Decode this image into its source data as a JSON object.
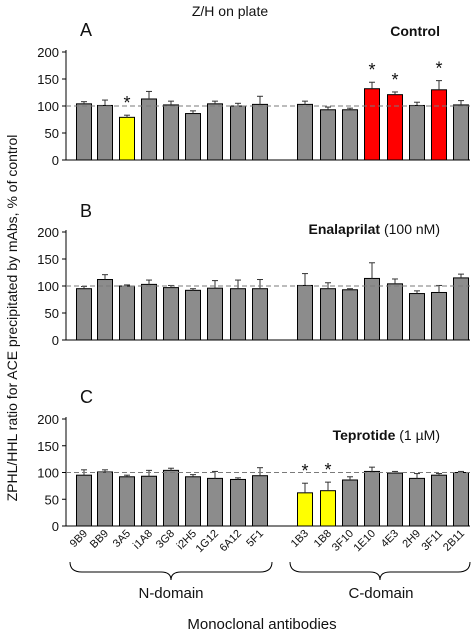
{
  "header": {
    "title": "Z/H on plate"
  },
  "y_axis_label": "ZPHL/HHL ratio for ACE precipitated by mAbs, % of control",
  "x_axis_label": "Monoclonal antibodies",
  "domain_labels": {
    "n": "N-domain",
    "c": "C-domain"
  },
  "colors": {
    "gray": "#8c8c8c",
    "yellow": "#ffff00",
    "red": "#ff0000",
    "refline": "#7a7a7a"
  },
  "chart_data": [
    {
      "type": "bar",
      "panel": "A",
      "title_bold": "Control",
      "title_rest": "",
      "ylim": [
        0,
        200
      ],
      "yticks": [
        0,
        50,
        100,
        150,
        200
      ],
      "reference_line": 100,
      "categories": [
        "9B9",
        "BB9",
        "3A5",
        "i1A8",
        "3G8",
        "i2H5",
        "1G12",
        "6A12",
        "5F1",
        "1B3",
        "1B8",
        "3F10",
        "1E10",
        "4E3",
        "2H9",
        "3F11",
        "2B11"
      ],
      "values": [
        104,
        101,
        79,
        113,
        102,
        86,
        104,
        100,
        103,
        103,
        93,
        93,
        132,
        121,
        101,
        130,
        102
      ],
      "errors": [
        4,
        10,
        4,
        14,
        7,
        5,
        5,
        5,
        15,
        6,
        5,
        3,
        12,
        5,
        6,
        17,
        8
      ],
      "bar_colors": [
        "gray",
        "gray",
        "yellow",
        "gray",
        "gray",
        "gray",
        "gray",
        "gray",
        "gray",
        "gray",
        "gray",
        "gray",
        "red",
        "red",
        "gray",
        "red",
        "gray"
      ],
      "significant": [
        2,
        12,
        13,
        15
      ]
    },
    {
      "type": "bar",
      "panel": "B",
      "title_bold": "Enalaprilat",
      "title_rest": "(100 nM)",
      "ylim": [
        0,
        200
      ],
      "yticks": [
        0,
        50,
        100,
        150,
        200
      ],
      "reference_line": 100,
      "categories": [
        "9B9",
        "BB9",
        "3A5",
        "i1A8",
        "3G8",
        "i2H5",
        "1G12",
        "6A12",
        "5F1",
        "1B3",
        "1B8",
        "3F10",
        "1E10",
        "4E3",
        "2H9",
        "3F11",
        "2B11"
      ],
      "values": [
        95,
        112,
        100,
        103,
        97,
        92,
        96,
        95,
        95,
        101,
        95,
        93,
        114,
        104,
        86,
        88,
        115
      ],
      "errors": [
        4,
        9,
        2,
        8,
        4,
        3,
        14,
        16,
        17,
        22,
        11,
        2,
        29,
        9,
        5,
        13,
        7
      ],
      "bar_colors": [
        "gray",
        "gray",
        "gray",
        "gray",
        "gray",
        "gray",
        "gray",
        "gray",
        "gray",
        "gray",
        "gray",
        "gray",
        "gray",
        "gray",
        "gray",
        "gray",
        "gray"
      ],
      "significant": []
    },
    {
      "type": "bar",
      "panel": "C",
      "title_bold": "Teprotide",
      "title_rest": "(1 µM)",
      "ylim": [
        0,
        200
      ],
      "yticks": [
        0,
        50,
        100,
        150,
        200
      ],
      "reference_line": 100,
      "categories": [
        "9B9",
        "BB9",
        "3A5",
        "i1A8",
        "3G8",
        "i2H5",
        "1G12",
        "6A12",
        "5F1",
        "1B3",
        "1B8",
        "3F10",
        "1E10",
        "4E3",
        "2H9",
        "3F11",
        "2B11"
      ],
      "values": [
        95,
        101,
        92,
        93,
        104,
        92,
        89,
        87,
        94,
        62,
        66,
        86,
        102,
        99,
        89,
        95,
        100
      ],
      "errors": [
        10,
        4,
        3,
        11,
        4,
        4,
        13,
        3,
        15,
        18,
        16,
        6,
        8,
        3,
        9,
        3,
        2
      ],
      "bar_colors": [
        "gray",
        "gray",
        "gray",
        "gray",
        "gray",
        "gray",
        "gray",
        "gray",
        "gray",
        "yellow",
        "yellow",
        "gray",
        "gray",
        "gray",
        "gray",
        "gray",
        "gray"
      ],
      "significant": [
        9,
        10
      ]
    }
  ]
}
